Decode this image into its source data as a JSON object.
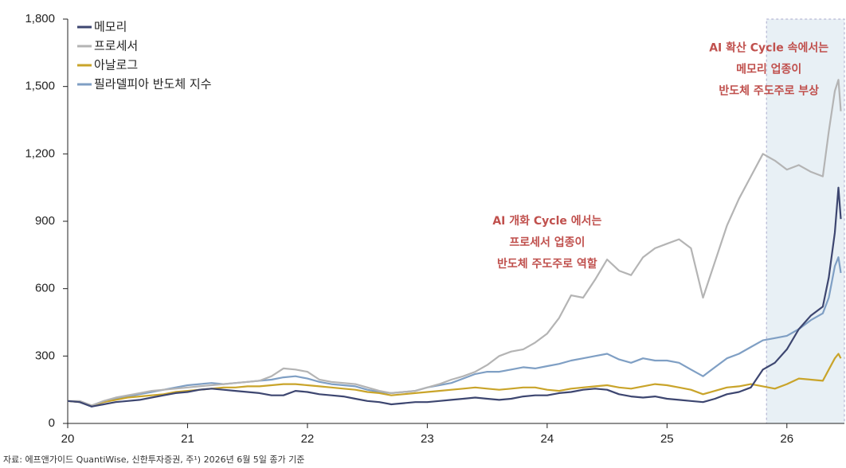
{
  "chart_data": {
    "type": "line",
    "x": [
      20.0,
      20.1,
      20.2,
      20.3,
      20.4,
      20.5,
      20.6,
      20.7,
      20.8,
      20.9,
      21.0,
      21.1,
      21.2,
      21.3,
      21.4,
      21.5,
      21.6,
      21.7,
      21.8,
      21.9,
      22.0,
      22.1,
      22.2,
      22.3,
      22.4,
      22.5,
      22.6,
      22.7,
      22.8,
      22.9,
      23.0,
      23.1,
      23.2,
      23.3,
      23.4,
      23.5,
      23.6,
      23.7,
      23.8,
      23.9,
      24.0,
      24.1,
      24.2,
      24.3,
      24.4,
      24.5,
      24.6,
      24.7,
      24.8,
      24.9,
      25.0,
      25.1,
      25.2,
      25.3,
      25.4,
      25.5,
      25.6,
      25.7,
      25.8,
      25.9,
      26.0,
      26.1,
      26.2,
      26.3,
      26.35,
      26.4,
      26.43,
      26.45
    ],
    "series": [
      {
        "name": "메모리",
        "color": "#3d4670",
        "values": [
          100,
          95,
          75,
          85,
          95,
          100,
          105,
          115,
          125,
          135,
          140,
          150,
          155,
          150,
          145,
          140,
          135,
          125,
          125,
          145,
          140,
          130,
          125,
          120,
          110,
          100,
          95,
          85,
          90,
          95,
          95,
          100,
          105,
          110,
          115,
          110,
          105,
          110,
          120,
          125,
          125,
          135,
          140,
          150,
          155,
          150,
          130,
          120,
          115,
          120,
          110,
          105,
          100,
          95,
          110,
          130,
          140,
          160,
          240,
          270,
          330,
          420,
          480,
          520,
          650,
          850,
          1050,
          910
        ]
      },
      {
        "name": "프로세서",
        "color": "#b4b4b4",
        "values": [
          100,
          100,
          80,
          100,
          115,
          125,
          135,
          145,
          150,
          155,
          160,
          165,
          170,
          175,
          180,
          185,
          190,
          210,
          245,
          240,
          230,
          195,
          185,
          180,
          175,
          160,
          145,
          135,
          140,
          145,
          160,
          175,
          195,
          210,
          230,
          260,
          300,
          320,
          330,
          360,
          400,
          470,
          570,
          560,
          640,
          730,
          680,
          660,
          740,
          780,
          800,
          820,
          780,
          560,
          720,
          880,
          1000,
          1100,
          1200,
          1170,
          1130,
          1150,
          1120,
          1100,
          1300,
          1480,
          1530,
          1390
        ]
      },
      {
        "name": "아날로그",
        "color": "#c9a42a",
        "values": [
          100,
          95,
          80,
          95,
          105,
          115,
          120,
          125,
          130,
          140,
          145,
          150,
          155,
          160,
          160,
          165,
          165,
          170,
          175,
          175,
          170,
          165,
          160,
          155,
          150,
          140,
          135,
          125,
          130,
          135,
          140,
          145,
          150,
          155,
          160,
          155,
          150,
          155,
          160,
          160,
          150,
          145,
          155,
          160,
          165,
          170,
          160,
          155,
          165,
          175,
          170,
          160,
          150,
          130,
          145,
          160,
          165,
          175,
          165,
          155,
          175,
          200,
          195,
          190,
          240,
          290,
          310,
          290
        ]
      },
      {
        "name": "필라델피아 반도체 지수",
        "color": "#7f9fc4",
        "values": [
          100,
          95,
          75,
          95,
          110,
          120,
          130,
          140,
          150,
          160,
          170,
          175,
          180,
          175,
          180,
          185,
          190,
          195,
          205,
          210,
          200,
          185,
          175,
          170,
          165,
          150,
          140,
          135,
          140,
          145,
          160,
          170,
          180,
          200,
          220,
          230,
          230,
          240,
          250,
          245,
          255,
          265,
          280,
          290,
          300,
          310,
          285,
          270,
          290,
          280,
          280,
          270,
          240,
          210,
          250,
          290,
          310,
          340,
          370,
          380,
          390,
          420,
          460,
          490,
          560,
          700,
          740,
          670
        ]
      }
    ],
    "xlim": [
      20,
      26.48
    ],
    "xticks": [
      20,
      21,
      22,
      23,
      24,
      25,
      26
    ],
    "ylim": [
      0,
      1800
    ],
    "yticks": [
      0,
      300,
      600,
      900,
      {
        "value": 1200,
        "label": "1,200"
      },
      {
        "value": 1500,
        "label": "1,500"
      },
      {
        "value": 1800,
        "label": "1,800"
      }
    ],
    "highlight_xrange": [
      25.83,
      26.48
    ],
    "legend": "top-left",
    "annotations": [
      {
        "x": 24.0,
        "y": 900,
        "lines": [
          "AI 개화 Cycle 에서는",
          "프로세서 업종이",
          "반도체 주도주로 역할"
        ]
      },
      {
        "x": 25.85,
        "y": 1670,
        "lines": [
          "AI 확산 Cycle 속에서는",
          "메모리 업종이",
          "반도체 주도주로 부상"
        ]
      }
    ],
    "source": "자료: 에프앤가이드 QuantiWise, 신한투자증권, 주¹) 2026년 6월 5일 종가 기준"
  }
}
